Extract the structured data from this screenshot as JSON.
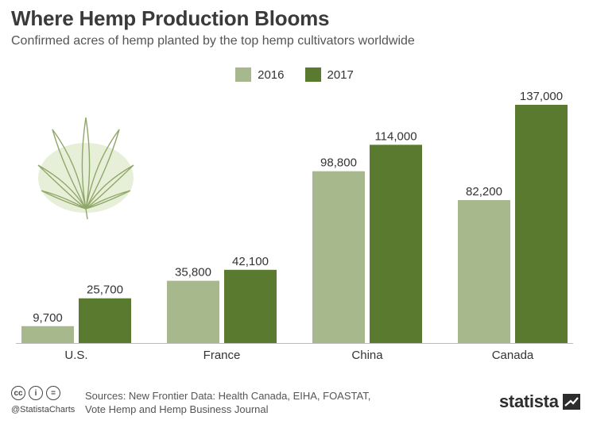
{
  "header": {
    "title": "Where Hemp Production Blooms",
    "subtitle": "Confirmed acres of hemp planted by the top hemp cultivators worldwide"
  },
  "legend": {
    "items": [
      {
        "label": "2016",
        "color": "#a7b98c"
      },
      {
        "label": "2017",
        "color": "#5a7a2f"
      }
    ]
  },
  "chart_data": {
    "type": "bar",
    "title": "Where Hemp Production Blooms",
    "subtitle": "Confirmed acres of hemp planted by the top hemp cultivators worldwide",
    "categories": [
      "U.S.",
      "France",
      "China",
      "Canada"
    ],
    "series": [
      {
        "name": "2016",
        "color": "#a7b98c",
        "values": [
          9700,
          35800,
          98800,
          82200
        ],
        "labels": [
          "9,700",
          "35,800",
          "98,800",
          "82,200"
        ]
      },
      {
        "name": "2017",
        "color": "#5a7a2f",
        "values": [
          25700,
          42100,
          114000,
          137000
        ],
        "labels": [
          "25,700",
          "42,100",
          "114,000",
          "137,000"
        ]
      }
    ],
    "ylim": [
      0,
      137000
    ],
    "grid": false,
    "legend_position": "top-center"
  },
  "footer": {
    "handle": "@StatistaCharts",
    "source_line1": "Sources: New Frontier Data: Health Canada, EIHA, FOASTAT,",
    "source_line2": "Vote Hemp and Hemp Business Journal",
    "brand": "statista",
    "cc_icons": [
      "cc",
      "by",
      "nd"
    ]
  }
}
